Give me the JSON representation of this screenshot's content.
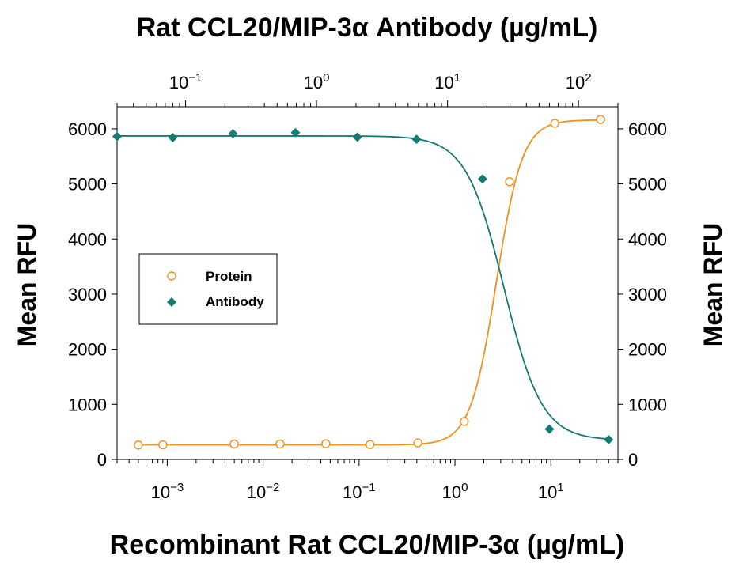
{
  "chart_data": {
    "type": "scatter",
    "title": "Rat CCL20/MIP-3α Antibody (µg/mL)",
    "xlabel": "Recombinant Rat CCL20/MIP-3α (µg/mL)",
    "ylabel": "Mean RFU",
    "y2label": "Mean RFU",
    "xscale": "log",
    "bottom_axis": {
      "xlim": [
        0.0003,
        50
      ],
      "tick_exponents": [
        -3,
        -2,
        -1,
        0,
        1
      ]
    },
    "top_axis": {
      "xlim": [
        0.03,
        200
      ],
      "tick_exponents": [
        -1,
        0,
        1,
        2
      ]
    },
    "ylim": [
      0,
      6400
    ],
    "yticks": [
      0,
      1000,
      2000,
      3000,
      4000,
      5000,
      6000
    ],
    "y2ticks": [
      0,
      1000,
      2000,
      3000,
      4000,
      5000,
      6000
    ],
    "grid": false,
    "legend_position": "middle-left",
    "series": [
      {
        "name": "Protein",
        "axis": "bottom",
        "marker": "open-circle",
        "color": "#f0901e",
        "x": [
          0.0005,
          0.0009,
          0.005,
          0.015,
          0.045,
          0.13,
          0.41,
          1.25,
          3.7,
          11,
          33
        ],
        "y": [
          260,
          265,
          280,
          280,
          285,
          270,
          300,
          690,
          5040,
          6100,
          6170
        ],
        "fit": {
          "bottom": 265,
          "top": 6160,
          "ec50": 2.7,
          "hill": 3.2
        }
      },
      {
        "name": "Antibody",
        "axis": "top",
        "marker": "filled-diamond",
        "color": "#157a72",
        "x": [
          0.03,
          0.08,
          0.23,
          0.69,
          2.05,
          5.8,
          18.5,
          60,
          170
        ],
        "y": [
          5860,
          5840,
          5910,
          5930,
          5850,
          5810,
          5090,
          550,
          360
        ],
        "fit": {
          "bottom": 350,
          "top": 5870,
          "ec50": 27,
          "hill": -3.0
        }
      }
    ]
  }
}
